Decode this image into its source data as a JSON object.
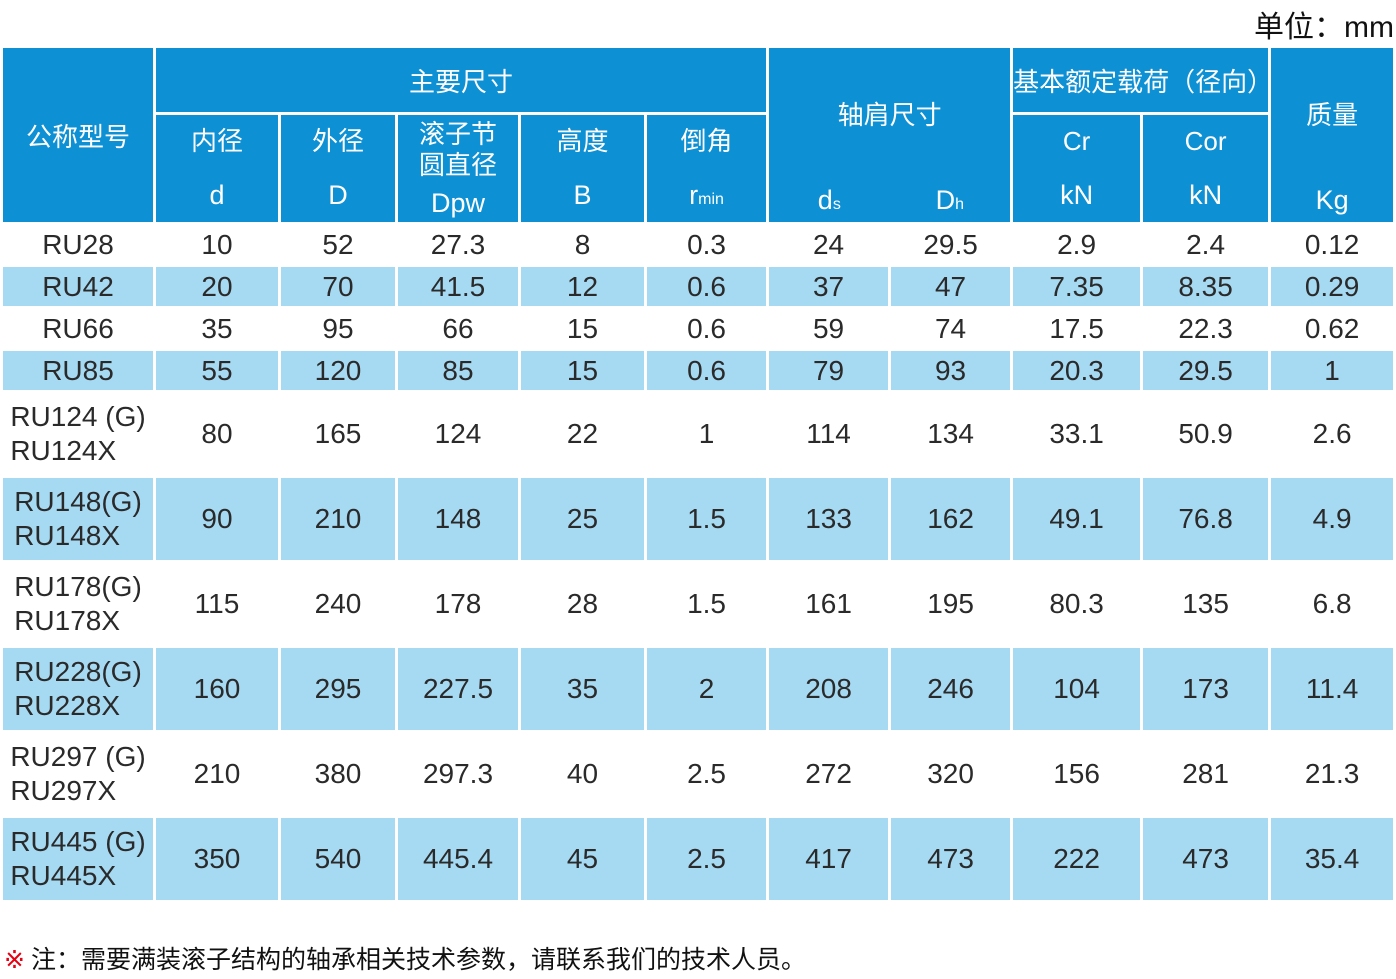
{
  "unit_label": "单位：mm",
  "colors": {
    "header_blue": "#0e90d4",
    "row_blue": "#a6d9f2",
    "text_dark": "#2a2a2a",
    "note_marker_red": "#e60012"
  },
  "table": {
    "header": {
      "model_col": "公称型号",
      "main_group": "主要尺寸",
      "shoulder_group": "轴肩尺寸",
      "load_group": "基本额定载荷（径向）",
      "mass_group": "质量",
      "inner_label": "内径",
      "inner_sym": "d",
      "outer_label": "外径",
      "outer_sym": "D",
      "pitch_label1": "滚子节",
      "pitch_label2": "圆直径",
      "pitch_sym": "Dpw",
      "height_label": "高度",
      "height_sym": "B",
      "chamfer_label": "倒角",
      "chamfer_sym_base": "r",
      "chamfer_sym_sub": "min",
      "ds_base": "d",
      "ds_sub": "s",
      "dh_base": "D",
      "dh_sub": "h",
      "cr_label": "Cr",
      "cr_unit": "kN",
      "cor_label": "Cor",
      "cor_unit": "kN",
      "mass_unit": "Kg"
    },
    "rows": [
      {
        "model": [
          "RU28"
        ],
        "shade": false,
        "values": [
          "10",
          "52",
          "27.3",
          "8",
          "0.3",
          "24",
          "29.5",
          "2.9",
          "2.4",
          "0.12"
        ]
      },
      {
        "model": [
          "RU42"
        ],
        "shade": true,
        "values": [
          "20",
          "70",
          "41.5",
          "12",
          "0.6",
          "37",
          "47",
          "7.35",
          "8.35",
          "0.29"
        ]
      },
      {
        "model": [
          "RU66"
        ],
        "shade": false,
        "values": [
          "35",
          "95",
          "66",
          "15",
          "0.6",
          "59",
          "74",
          "17.5",
          "22.3",
          "0.62"
        ]
      },
      {
        "model": [
          "RU85"
        ],
        "shade": true,
        "values": [
          "55",
          "120",
          "85",
          "15",
          "0.6",
          "79",
          "93",
          "20.3",
          "29.5",
          "1"
        ]
      },
      {
        "model": [
          "RU124 (G)",
          "RU124X"
        ],
        "shade": false,
        "values": [
          "80",
          "165",
          "124",
          "22",
          "1",
          "114",
          "134",
          "33.1",
          "50.9",
          "2.6"
        ]
      },
      {
        "model": [
          "RU148(G)",
          "RU148X"
        ],
        "shade": true,
        "values": [
          "90",
          "210",
          "148",
          "25",
          "1.5",
          "133",
          "162",
          "49.1",
          "76.8",
          "4.9"
        ]
      },
      {
        "model": [
          "RU178(G)",
          "RU178X"
        ],
        "shade": false,
        "values": [
          "115",
          "240",
          "178",
          "28",
          "1.5",
          "161",
          "195",
          "80.3",
          "135",
          "6.8"
        ]
      },
      {
        "model": [
          "RU228(G)",
          "RU228X"
        ],
        "shade": true,
        "values": [
          "160",
          "295",
          "227.5",
          "35",
          "2",
          "208",
          "246",
          "104",
          "173",
          "11.4"
        ]
      },
      {
        "model": [
          "RU297 (G)",
          "RU297X"
        ],
        "shade": false,
        "values": [
          "210",
          "380",
          "297.3",
          "40",
          "2.5",
          "272",
          "320",
          "156",
          "281",
          "21.3"
        ]
      },
      {
        "model": [
          "RU445 (G)",
          "RU445X"
        ],
        "shade": true,
        "values": [
          "350",
          "540",
          "445.4",
          "45",
          "2.5",
          "417",
          "473",
          "222",
          "473",
          "35.4"
        ]
      }
    ]
  },
  "footnote": {
    "marker": "※",
    "text": "注：需要满装滚子结构的轴承相关技术参数，请联系我们的技术人员。"
  }
}
